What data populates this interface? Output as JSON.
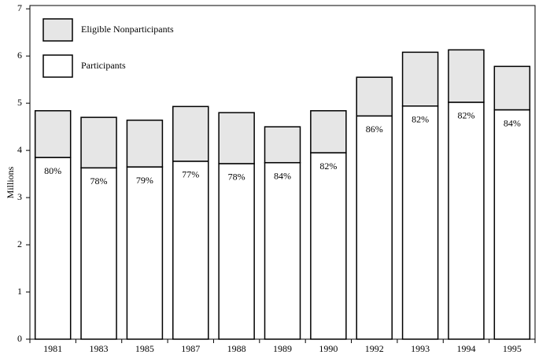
{
  "chart_data": {
    "type": "stacked-bar",
    "y_label": "Millions",
    "categories": [
      "1981",
      "1983",
      "1985",
      "1987",
      "1988",
      "1989",
      "1990",
      "1992",
      "1993",
      "1994",
      "1995"
    ],
    "series": [
      {
        "name": "Participants",
        "color": "#ffffff",
        "values": [
          3.85,
          3.63,
          3.65,
          3.77,
          3.72,
          3.74,
          3.95,
          4.73,
          4.94,
          5.02,
          4.86
        ]
      },
      {
        "name": "Eligible Nonparticipants",
        "color": "#e6e6e6",
        "values": [
          0.99,
          1.07,
          0.99,
          1.16,
          1.08,
          0.76,
          0.89,
          0.82,
          1.14,
          1.11,
          0.92
        ]
      }
    ],
    "participation_labels": [
      "80%",
      "78%",
      "79%",
      "77%",
      "78%",
      "84%",
      "82%",
      "86%",
      "82%",
      "82%",
      "84%"
    ],
    "ylim": [
      0,
      7.07
    ],
    "yticks": [
      0,
      1,
      2,
      3,
      4,
      5,
      6,
      7
    ]
  }
}
